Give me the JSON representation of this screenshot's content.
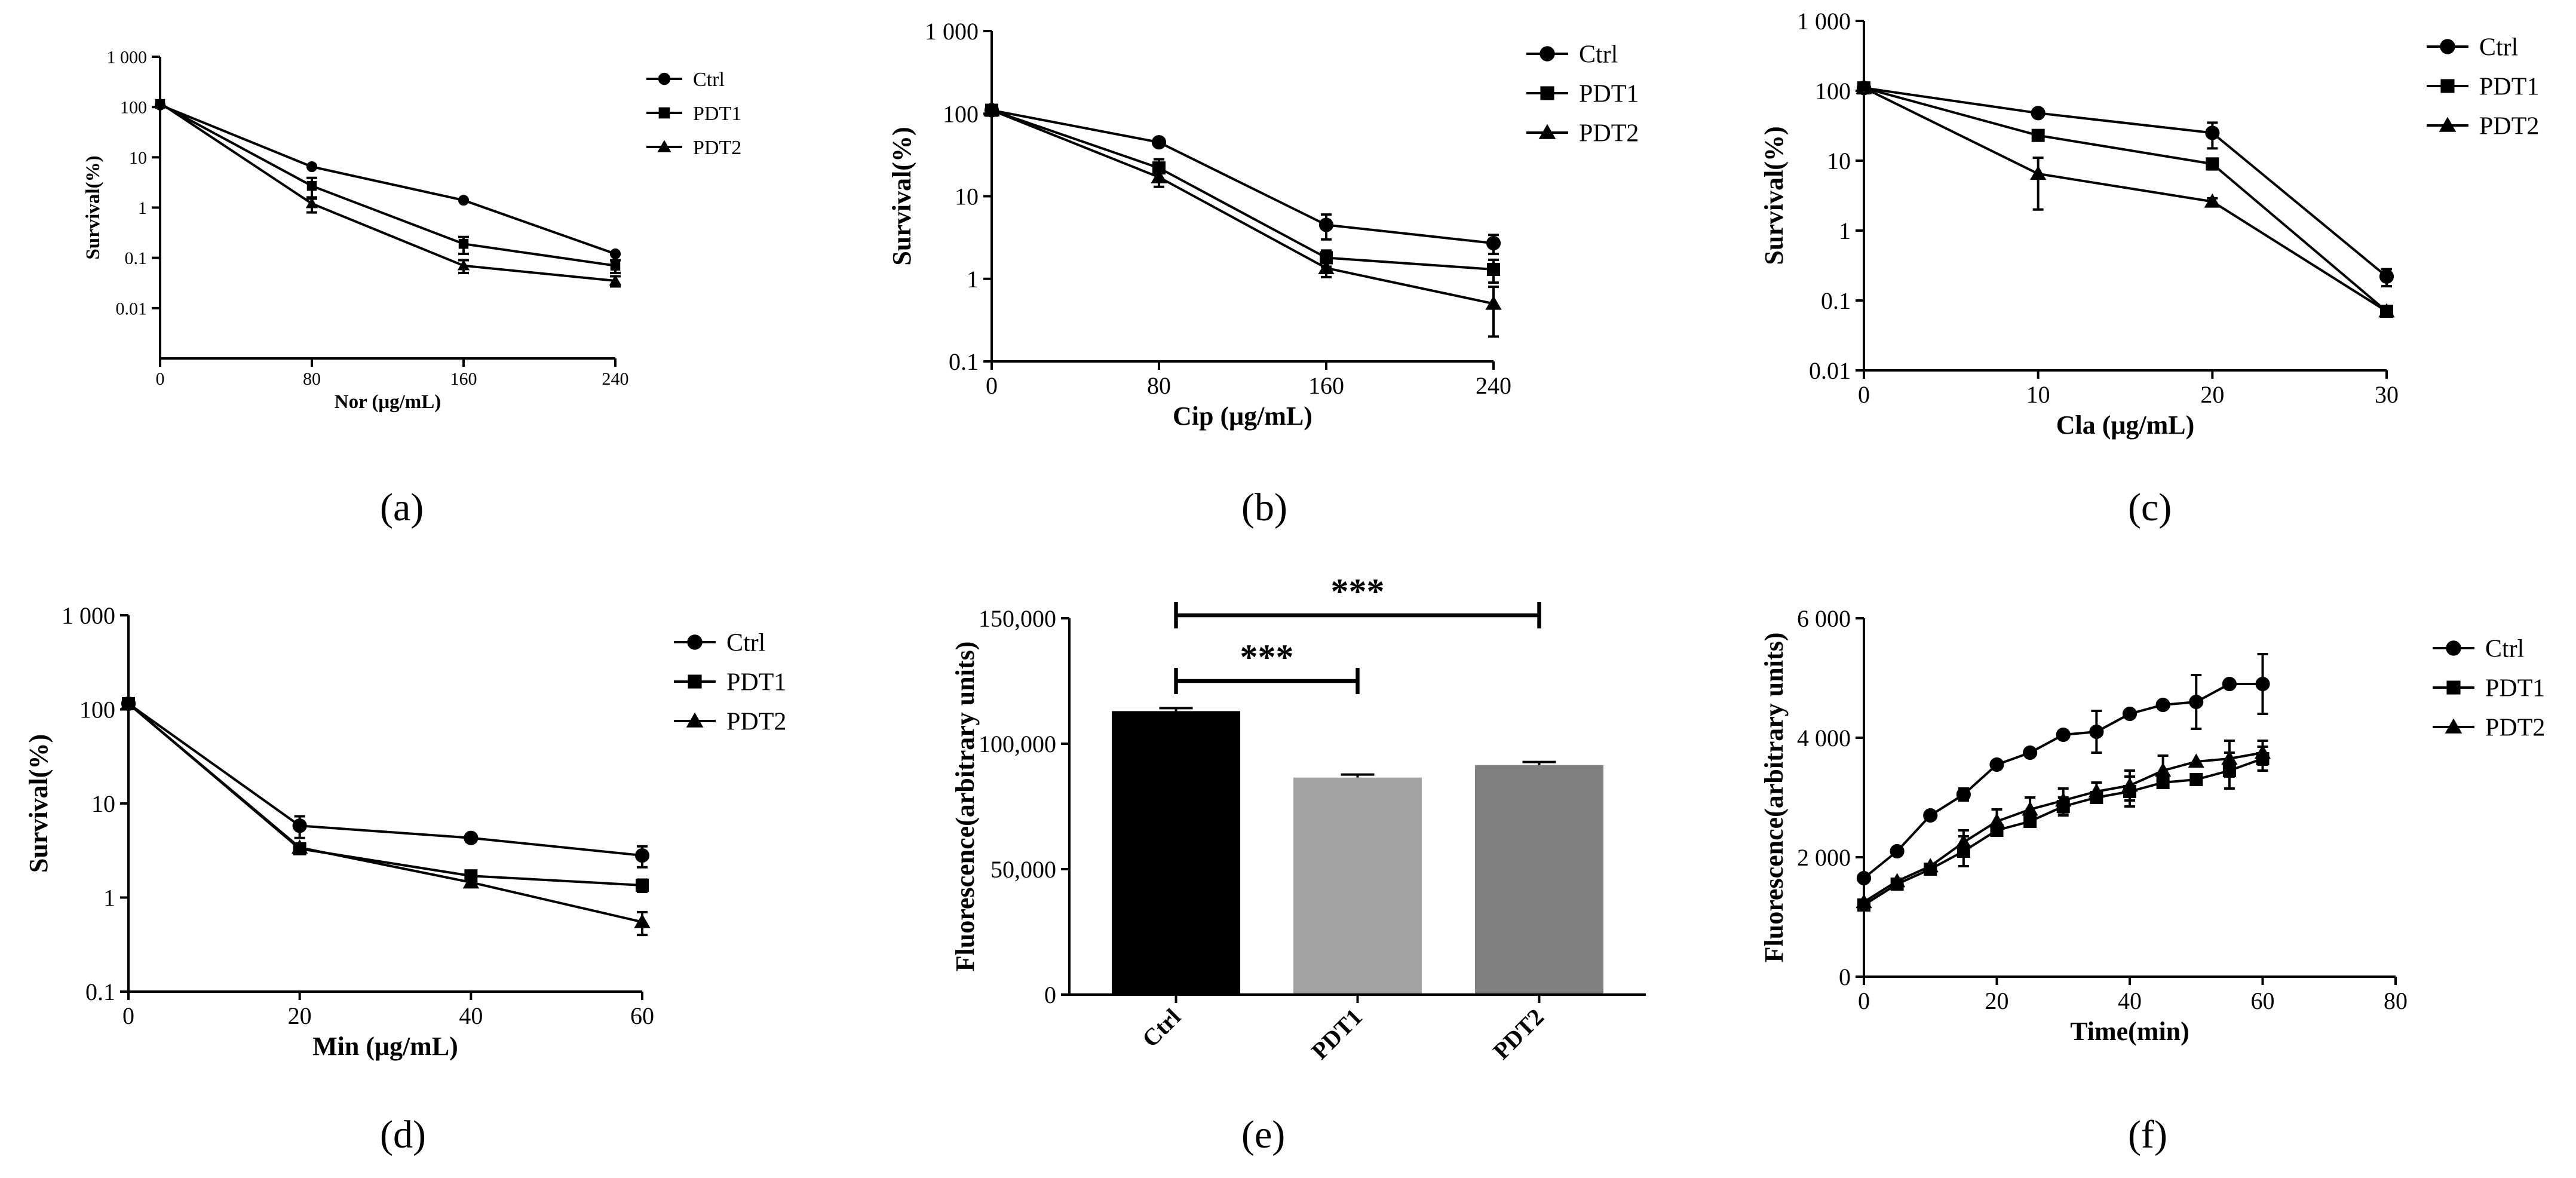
{
  "figure": {
    "labels": [
      "(a)",
      "(b)",
      "(c)",
      "(d)",
      "(e)",
      "(f)"
    ],
    "colors": {
      "ink": "#000000",
      "bar_ctrl": "#000000",
      "bar_pdt1": "#a3a3a3",
      "bar_pdt2": "#808080"
    }
  },
  "chart_data": [
    {
      "id": "a",
      "type": "line",
      "scale": "log",
      "xlabel": "Nor (μg/mL)",
      "ylabel": "Survival(%)",
      "xlim": [
        0,
        240
      ],
      "ylim": [
        0.001,
        1000
      ],
      "xticks": [
        0,
        80,
        160,
        240
      ],
      "xtick_labels": [
        "0",
        "80",
        "160",
        "240"
      ],
      "yticks": [
        0.01,
        0.1,
        1,
        10,
        100,
        1000
      ],
      "ytick_labels": [
        "0.01",
        "0.1",
        "1",
        "10",
        "100",
        "1 000"
      ],
      "legend": "top-right",
      "series": [
        {
          "name": "Ctrl",
          "marker": "circle",
          "x": [
            0,
            80,
            160,
            240
          ],
          "values": [
            110,
            6.5,
            1.4,
            0.12
          ],
          "err": [
            0,
            0,
            0,
            0
          ]
        },
        {
          "name": "PDT1",
          "marker": "square",
          "x": [
            0,
            80,
            160,
            240
          ],
          "values": [
            115,
            2.7,
            0.19,
            0.07
          ],
          "err": [
            0,
            1.2,
            0.07,
            0.02
          ]
        },
        {
          "name": "PDT2",
          "marker": "triangle",
          "x": [
            0,
            80,
            160,
            240
          ],
          "values": [
            120,
            1.2,
            0.07,
            0.035
          ],
          "err": [
            0,
            0.4,
            0.02,
            0.008
          ]
        }
      ]
    },
    {
      "id": "b",
      "type": "line",
      "scale": "log",
      "xlabel": "Cip (μg/mL)",
      "ylabel": "Survival(%)",
      "xlim": [
        0,
        240
      ],
      "ylim": [
        0.1,
        1000
      ],
      "xticks": [
        0,
        80,
        160,
        240
      ],
      "xtick_labels": [
        "0",
        "80",
        "160",
        "240"
      ],
      "yticks": [
        0.1,
        1,
        10,
        100,
        1000
      ],
      "ytick_labels": [
        "0.1",
        "1",
        "10",
        "100",
        "1 000"
      ],
      "legend": "top-right",
      "series": [
        {
          "name": "Ctrl",
          "marker": "circle",
          "x": [
            0,
            80,
            160,
            240
          ],
          "values": [
            110,
            45,
            4.5,
            2.7
          ],
          "err": [
            0,
            3,
            1.5,
            0.7
          ]
        },
        {
          "name": "PDT1",
          "marker": "square",
          "x": [
            0,
            80,
            160,
            240
          ],
          "values": [
            110,
            22,
            1.8,
            1.3
          ],
          "err": [
            0,
            6,
            0.4,
            0.4
          ]
        },
        {
          "name": "PDT2",
          "marker": "triangle",
          "x": [
            0,
            80,
            160,
            240
          ],
          "values": [
            110,
            17,
            1.35,
            0.5
          ],
          "err": [
            0,
            4,
            0.3,
            0.3
          ]
        }
      ]
    },
    {
      "id": "c",
      "type": "line",
      "scale": "log",
      "xlabel": "Cla (μg/mL)",
      "ylabel": "Survival(%)",
      "xlim": [
        0,
        30
      ],
      "ylim": [
        0.01,
        1000
      ],
      "xticks": [
        0,
        10,
        20,
        30
      ],
      "xtick_labels": [
        "0",
        "10",
        "20",
        "30"
      ],
      "yticks": [
        0.01,
        0.1,
        1,
        10,
        100,
        1000
      ],
      "ytick_labels": [
        "0.01",
        "0.1",
        "1",
        "10",
        "100",
        "1 000"
      ],
      "legend": "top-right",
      "series": [
        {
          "name": "Ctrl",
          "marker": "circle",
          "x": [
            0,
            10,
            20,
            30
          ],
          "values": [
            110,
            48,
            25,
            0.22
          ],
          "err": [
            0,
            3,
            10,
            0.06
          ]
        },
        {
          "name": "PDT1",
          "marker": "square",
          "x": [
            0,
            10,
            20,
            30
          ],
          "values": [
            110,
            23,
            9,
            0.07
          ],
          "err": [
            0,
            3,
            1.5,
            0.01
          ]
        },
        {
          "name": "PDT2",
          "marker": "triangle",
          "x": [
            0,
            10,
            20,
            30
          ],
          "values": [
            110,
            6.5,
            2.6,
            0.07
          ],
          "err": [
            0,
            4.5,
            0.3,
            0.01
          ]
        }
      ]
    },
    {
      "id": "d",
      "type": "line",
      "scale": "log",
      "xlabel": "Min (μg/mL)",
      "ylabel": "Survival(%)",
      "xlim": [
        0,
        60
      ],
      "ylim": [
        0.1,
        1000
      ],
      "xticks": [
        0,
        20,
        40,
        60
      ],
      "xtick_labels": [
        "0",
        "20",
        "40",
        "60"
      ],
      "yticks": [
        0.1,
        1,
        10,
        100,
        1000
      ],
      "ytick_labels": [
        "0.1",
        "1",
        "10",
        "100",
        "1 000"
      ],
      "legend": "top-right",
      "series": [
        {
          "name": "Ctrl",
          "marker": "circle",
          "x": [
            0,
            20,
            40,
            60
          ],
          "values": [
            115,
            5.8,
            4.3,
            2.8
          ],
          "err": [
            0,
            1.5,
            0.4,
            0.7
          ]
        },
        {
          "name": "PDT1",
          "marker": "square",
          "x": [
            0,
            20,
            40,
            60
          ],
          "values": [
            115,
            3.3,
            1.7,
            1.35
          ],
          "err": [
            0,
            0.3,
            0.2,
            0.2
          ]
        },
        {
          "name": "PDT2",
          "marker": "triangle",
          "x": [
            0,
            20,
            40,
            60
          ],
          "values": [
            115,
            3.4,
            1.45,
            0.55
          ],
          "err": [
            0,
            0.3,
            0.15,
            0.15
          ]
        }
      ]
    },
    {
      "id": "e",
      "type": "bar",
      "xlabel": "",
      "ylabel": "Fluorescence(arbitrary units)",
      "ylim": [
        0,
        150000
      ],
      "yticks": [
        0,
        50000,
        100000,
        150000
      ],
      "ytick_labels": [
        "0",
        "50,000",
        "100,000",
        "150,000"
      ],
      "categories": [
        "Ctrl",
        "PDT1",
        "PDT2"
      ],
      "values": [
        113000,
        86500,
        91500
      ],
      "err": [
        1200,
        1200,
        1200
      ],
      "bar_color_keys": [
        "bar_ctrl",
        "bar_pdt1",
        "bar_pdt2"
      ],
      "significance": [
        {
          "from": "Ctrl",
          "to": "PDT2",
          "label": "***"
        },
        {
          "from": "Ctrl",
          "to": "PDT1",
          "label": "***"
        }
      ]
    },
    {
      "id": "f",
      "type": "line",
      "scale": "linear",
      "xlabel": "Time(min)",
      "ylabel": "Fluorescence(arbitrary units)",
      "xlim": [
        0,
        80
      ],
      "ylim": [
        0,
        6000
      ],
      "xticks": [
        0,
        20,
        40,
        60,
        80
      ],
      "xtick_labels": [
        "0",
        "20",
        "40",
        "60",
        "80"
      ],
      "yticks": [
        0,
        2000,
        4000,
        6000
      ],
      "ytick_labels": [
        "0",
        "2 000",
        "4 000",
        "6 000"
      ],
      "legend": "top-right",
      "series": [
        {
          "name": "Ctrl",
          "marker": "circle",
          "x": [
            0,
            5,
            10,
            15,
            20,
            25,
            30,
            35,
            40,
            45,
            50,
            55,
            60
          ],
          "values": [
            1650,
            2100,
            2700,
            3050,
            3550,
            3750,
            4050,
            4100,
            4400,
            4550,
            4600,
            4900,
            4900
          ],
          "err": [
            0,
            0,
            0,
            100,
            0,
            0,
            0,
            350,
            0,
            0,
            450,
            0,
            500
          ]
        },
        {
          "name": "PDT1",
          "marker": "square",
          "x": [
            0,
            5,
            10,
            15,
            20,
            25,
            30,
            35,
            40,
            45,
            50,
            55,
            60
          ],
          "values": [
            1200,
            1550,
            1800,
            2100,
            2450,
            2600,
            2850,
            3000,
            3100,
            3250,
            3300,
            3450,
            3650
          ],
          "err": [
            0,
            0,
            0,
            250,
            0,
            0,
            150,
            0,
            250,
            0,
            0,
            300,
            200
          ]
        },
        {
          "name": "PDT2",
          "marker": "triangle",
          "x": [
            0,
            5,
            10,
            15,
            20,
            25,
            30,
            35,
            40,
            45,
            50,
            55,
            60
          ],
          "values": [
            1250,
            1600,
            1850,
            2250,
            2600,
            2800,
            2950,
            3100,
            3200,
            3450,
            3600,
            3650,
            3750
          ],
          "err": [
            0,
            0,
            0,
            200,
            200,
            200,
            200,
            150,
            250,
            250,
            0,
            300,
            200
          ]
        }
      ]
    }
  ]
}
